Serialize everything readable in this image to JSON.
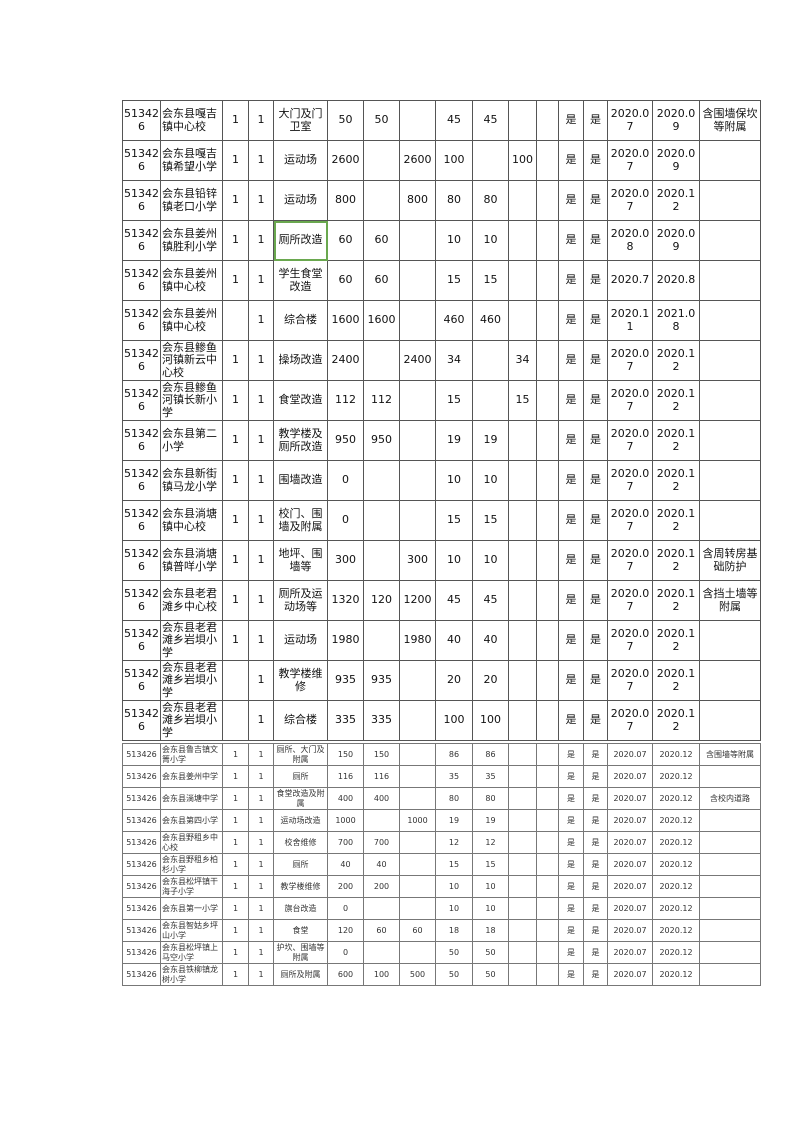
{
  "table_top": {
    "rows": [
      [
        "513426",
        "会东县嘎吉镇中心校",
        "1",
        "1",
        "大门及门卫室",
        "50",
        "50",
        "",
        "45",
        "45",
        "",
        "",
        "是",
        "是",
        "2020.07",
        "2020.09",
        "含围墙保坎等附属"
      ],
      [
        "513426",
        "会东县嘎吉镇希望小学",
        "1",
        "1",
        "运动场",
        "2600",
        "",
        "2600",
        "100",
        "",
        "100",
        "",
        "是",
        "是",
        "2020.07",
        "2020.09",
        ""
      ],
      [
        "513426",
        "会东县铅锌镇老口小学",
        "1",
        "1",
        "运动场",
        "800",
        "",
        "800",
        "80",
        "80",
        "",
        "",
        "是",
        "是",
        "2020.07",
        "2020.12",
        ""
      ],
      [
        "513426",
        "会东县姜州镇胜利小学",
        "1",
        "1",
        "厕所改造",
        "60",
        "60",
        "",
        "10",
        "10",
        "",
        "",
        "是",
        "是",
        "2020.08",
        "2020.09",
        ""
      ],
      [
        "513426",
        "会东县姜州镇中心校",
        "1",
        "1",
        "学生食堂改造",
        "60",
        "60",
        "",
        "15",
        "15",
        "",
        "",
        "是",
        "是",
        "2020.7",
        "2020.8",
        ""
      ],
      [
        "513426",
        "会东县姜州镇中心校",
        "",
        "1",
        "综合楼",
        "1600",
        "1600",
        "",
        "460",
        "460",
        "",
        "",
        "是",
        "是",
        "2020.11",
        "2021.08",
        ""
      ],
      [
        "513426",
        "会东县鲹鱼河镇新云中心校",
        "1",
        "1",
        "操场改造",
        "2400",
        "",
        "2400",
        "34",
        "",
        "34",
        "",
        "是",
        "是",
        "2020.07",
        "2020.12",
        ""
      ],
      [
        "513426",
        "会东县鲹鱼河镇长新小学",
        "1",
        "1",
        "食堂改造",
        "112",
        "112",
        "",
        "15",
        "",
        "15",
        "",
        "是",
        "是",
        "2020.07",
        "2020.12",
        ""
      ],
      [
        "513426",
        "会东县第二小学",
        "1",
        "1",
        "教学楼及厕所改造",
        "950",
        "950",
        "",
        "19",
        "19",
        "",
        "",
        "是",
        "是",
        "2020.07",
        "2020.12",
        ""
      ],
      [
        "513426",
        "会东县新街镇马龙小学",
        "1",
        "1",
        "围墙改造",
        "0",
        "",
        "",
        "10",
        "10",
        "",
        "",
        "是",
        "是",
        "2020.07",
        "2020.12",
        ""
      ],
      [
        "513426",
        "会东县淌塘镇中心校",
        "1",
        "1",
        "校门、围墙及附属",
        "0",
        "",
        "",
        "15",
        "15",
        "",
        "",
        "是",
        "是",
        "2020.07",
        "2020.12",
        ""
      ],
      [
        "513426",
        "会东县淌塘镇普咩小学",
        "1",
        "1",
        "地坪、围墙等",
        "300",
        "",
        "300",
        "10",
        "10",
        "",
        "",
        "是",
        "是",
        "2020.07",
        "2020.12",
        "含周转房基础防护"
      ],
      [
        "513426",
        "会东县老君滩乡中心校",
        "1",
        "1",
        "厕所及运动场等",
        "1320",
        "120",
        "1200",
        "45",
        "45",
        "",
        "",
        "是",
        "是",
        "2020.07",
        "2020.12",
        "含挡土墙等附属"
      ],
      [
        "513426",
        "会东县老君滩乡岩垻小学",
        "1",
        "1",
        "运动场",
        "1980",
        "",
        "1980",
        "40",
        "40",
        "",
        "",
        "是",
        "是",
        "2020.07",
        "2020.12",
        ""
      ],
      [
        "513426",
        "会东县老君滩乡岩垻小学",
        "",
        "1",
        "教学楼维修",
        "935",
        "935",
        "",
        "20",
        "20",
        "",
        "",
        "是",
        "是",
        "2020.07",
        "2020.12",
        ""
      ],
      [
        "513426",
        "会东县老君滩乡岩垻小学",
        "",
        "1",
        "综合楼",
        "335",
        "335",
        "",
        "100",
        "100",
        "",
        "",
        "是",
        "是",
        "2020.07",
        "2020.12",
        ""
      ]
    ]
  },
  "table_bottom": {
    "rows": [
      [
        "513426",
        "会东县鲁吉镇文箐小学",
        "1",
        "1",
        "厕所、大门及附属",
        "150",
        "150",
        "",
        "86",
        "86",
        "",
        "",
        "是",
        "是",
        "2020.07",
        "2020.12",
        "含围墙等附属"
      ],
      [
        "513426",
        "会东县姜州中学",
        "1",
        "1",
        "厕所",
        "116",
        "116",
        "",
        "35",
        "35",
        "",
        "",
        "是",
        "是",
        "2020.07",
        "2020.12",
        ""
      ],
      [
        "513426",
        "会东县淌塘中学",
        "1",
        "1",
        "食堂改造及附属",
        "400",
        "400",
        "",
        "80",
        "80",
        "",
        "",
        "是",
        "是",
        "2020.07",
        "2020.12",
        "含校内道路"
      ],
      [
        "513426",
        "会东县第四小学",
        "1",
        "1",
        "运动场改造",
        "1000",
        "",
        "1000",
        "19",
        "19",
        "",
        "",
        "是",
        "是",
        "2020.07",
        "2020.12",
        ""
      ],
      [
        "513426",
        "会东县野租乡中心校",
        "1",
        "1",
        "校舍维修",
        "700",
        "700",
        "",
        "12",
        "12",
        "",
        "",
        "是",
        "是",
        "2020.07",
        "2020.12",
        ""
      ],
      [
        "513426",
        "会东县野租乡柏杉小学",
        "1",
        "1",
        "厕所",
        "40",
        "40",
        "",
        "15",
        "15",
        "",
        "",
        "是",
        "是",
        "2020.07",
        "2020.12",
        ""
      ],
      [
        "513426",
        "会东县松坪镇干海子小学",
        "1",
        "1",
        "教学楼维修",
        "200",
        "200",
        "",
        "10",
        "10",
        "",
        "",
        "是",
        "是",
        "2020.07",
        "2020.12",
        ""
      ],
      [
        "513426",
        "会东县第一小学",
        "1",
        "1",
        "旗台改造",
        "0",
        "",
        "",
        "10",
        "10",
        "",
        "",
        "是",
        "是",
        "2020.07",
        "2020.12",
        ""
      ],
      [
        "513426",
        "会东县智姑乡坪山小学",
        "1",
        "1",
        "食堂",
        "120",
        "60",
        "60",
        "18",
        "18",
        "",
        "",
        "是",
        "是",
        "2020.07",
        "2020.12",
        ""
      ],
      [
        "513426",
        "会东县松坪镇上马空小学",
        "1",
        "1",
        "护坎、围墙等附属",
        "0",
        "",
        "",
        "50",
        "50",
        "",
        "",
        "是",
        "是",
        "2020.07",
        "2020.12",
        ""
      ],
      [
        "513426",
        "会东县铁柳镇龙树小学",
        "1",
        "1",
        "厕所及附属",
        "600",
        "100",
        "500",
        "50",
        "50",
        "",
        "",
        "是",
        "是",
        "2020.07",
        "2020.12",
        ""
      ]
    ]
  },
  "selection_color": "#6aa84f"
}
